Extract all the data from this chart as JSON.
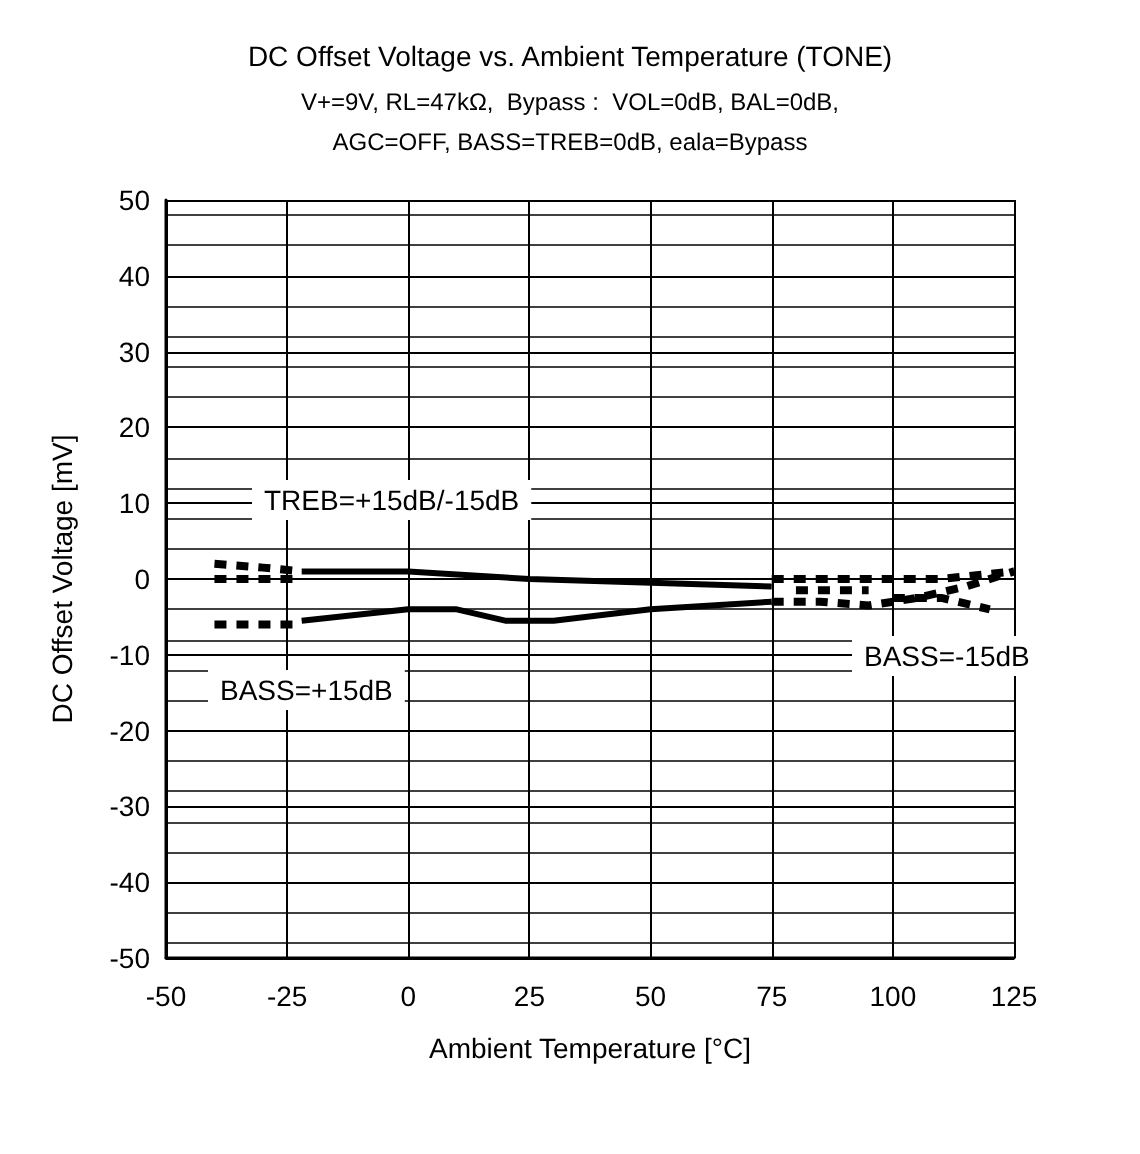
{
  "chart_data": {
    "type": "line",
    "title": "DC Offset Voltage vs. Ambient Temperature (TONE)",
    "subtitle": "V+=9V, RL=47kΩ,  Bypass :  VOL=0dB, BAL=0dB,\nAGC=OFF, BASS=TREB=0dB, eala=Bypass",
    "xlabel": "Ambient Temperature [°C]",
    "ylabel": "DC Offset Voltage [mV]",
    "xlim": [
      -50,
      125
    ],
    "xticks": [
      -50,
      -25,
      0,
      25,
      50,
      75,
      100,
      125
    ],
    "ylim": [
      -50,
      50
    ],
    "yticks": [
      -50,
      -40,
      -30,
      -20,
      -10,
      0,
      10,
      20,
      30,
      40,
      50
    ],
    "grid": true,
    "marker": "none",
    "series": [
      {
        "color": "#000000",
        "line_style": "solid",
        "x": [
          -22,
          0,
          25,
          75
        ],
        "values": [
          1,
          1,
          0,
          -1
        ]
      },
      {
        "color": "#000000",
        "line_style": "dashed",
        "x": [
          -40,
          -30,
          -22
        ],
        "values": [
          2,
          1.5,
          1
        ]
      },
      {
        "color": "#000000",
        "line_style": "dashed",
        "x": [
          -40,
          -22
        ],
        "values": [
          0,
          0
        ]
      },
      {
        "color": "#000000",
        "line_style": "dashed",
        "x": [
          75,
          110,
          125
        ],
        "values": [
          0,
          0,
          1
        ]
      },
      {
        "color": "#000000",
        "line_style": "dashed",
        "x": [
          80,
          95
        ],
        "values": [
          -1.5,
          -1.5
        ]
      },
      {
        "color": "#000000",
        "line_style": "solid",
        "x": [
          -22,
          0,
          10,
          20,
          30,
          50,
          75
        ],
        "values": [
          -5.5,
          -4,
          -4,
          -5.5,
          -5.5,
          -4,
          -3
        ]
      },
      {
        "color": "#000000",
        "line_style": "dashed",
        "x": [
          -40,
          -22
        ],
        "values": [
          -6,
          -6
        ]
      },
      {
        "color": "#000000",
        "line_style": "dashed",
        "x": [
          75,
          85,
          95,
          105,
          115,
          125
        ],
        "values": [
          -3,
          -3,
          -3.5,
          -2.5,
          -1,
          1
        ]
      },
      {
        "color": "#000000",
        "line_style": "dashed",
        "x": [
          100,
          110,
          120
        ],
        "values": [
          -2.5,
          -2.5,
          -4
        ]
      }
    ],
    "annotations": [
      "TREB=+15dB/-15dB",
      "BASS=+15dB",
      "BASS=-15dB"
    ]
  }
}
